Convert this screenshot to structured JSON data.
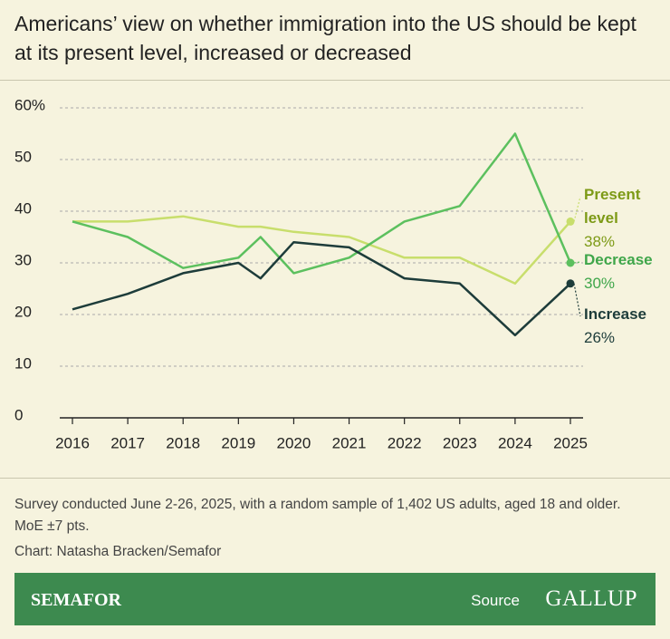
{
  "chart_data": {
    "type": "line",
    "title": "Americans’ view on whether immigration into the US should be kept at its present level, increased or decreased",
    "x": [
      2016,
      2017,
      2018,
      2019,
      2019.4,
      2020,
      2021,
      2022,
      2023,
      2024,
      2025
    ],
    "series": [
      {
        "name": "Present level",
        "color": "#c8de6c",
        "values": [
          38,
          38,
          39,
          37,
          37,
          36,
          35,
          31,
          31,
          26,
          38
        ],
        "value_labels": [
          null,
          null,
          null,
          null,
          null,
          null,
          null,
          null,
          null,
          null,
          "38%"
        ]
      },
      {
        "name": "Decrease",
        "color": "#5cc05e",
        "values": [
          38,
          35,
          29,
          31,
          35,
          28,
          31,
          38,
          41,
          55,
          30
        ],
        "value_labels": [
          null,
          null,
          null,
          null,
          null,
          null,
          null,
          null,
          null,
          null,
          "30%"
        ]
      },
      {
        "name": "Increase",
        "color": "#1d3c3a",
        "values": [
          21,
          24,
          28,
          30,
          27,
          34,
          33,
          27,
          26,
          16,
          26
        ],
        "value_labels": [
          null,
          null,
          null,
          null,
          null,
          null,
          null,
          null,
          null,
          null,
          "26%"
        ]
      }
    ],
    "xlim": [
      2016,
      2025
    ],
    "xticks": [
      2016,
      2017,
      2018,
      2019,
      2020,
      2021,
      2022,
      2023,
      2024,
      2025
    ],
    "ylim": [
      0,
      60
    ],
    "yticks": [
      0,
      10,
      20,
      30,
      40,
      50,
      {
        "value": 60,
        "label": "60%"
      }
    ],
    "grid": true,
    "note": "Survey conducted June 2-26, 2025, with a random sample of 1,402 US adults, aged 18 and older. MoE ±7 pts.",
    "credit": "Chart: Natasha Bracken/Semafor",
    "brand": "SEMAFOR",
    "source_label": "Source",
    "source": "GALLUP"
  }
}
